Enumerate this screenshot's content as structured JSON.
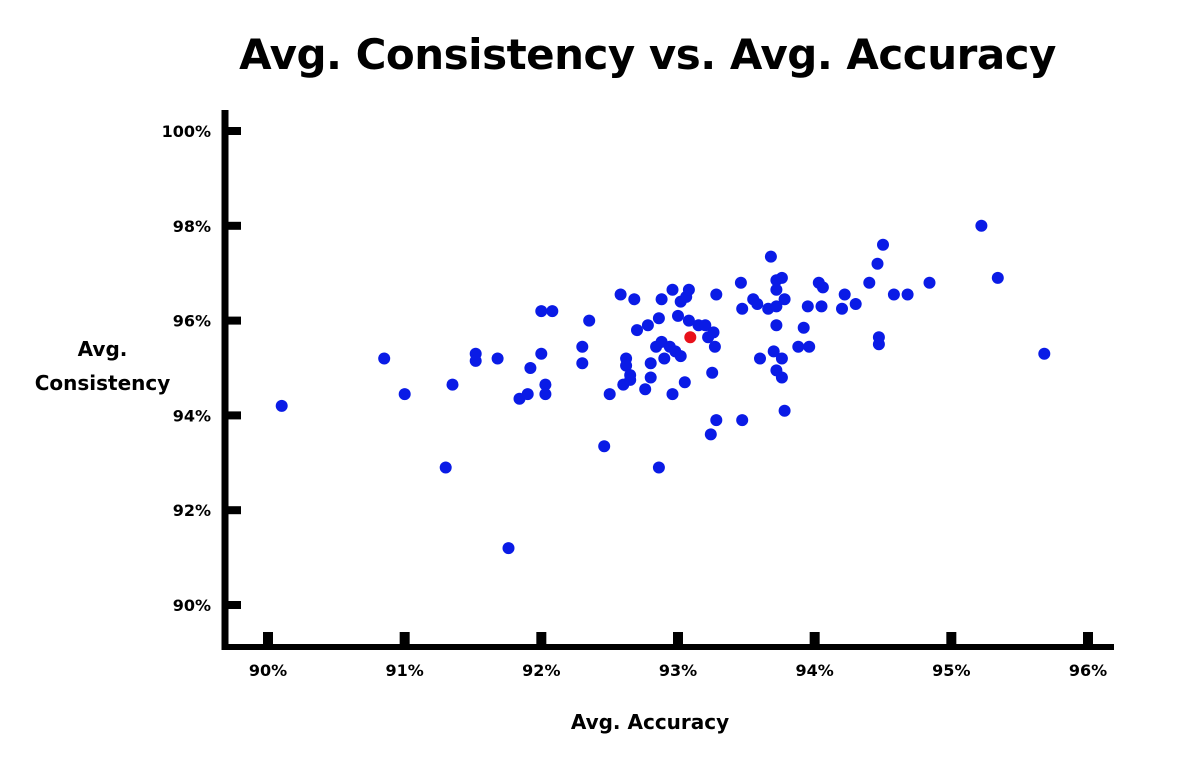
{
  "chart_data": {
    "type": "scatter",
    "title": "Avg. Consistency vs. Avg. Accuracy",
    "xlabel": "Avg. Accuracy",
    "ylabel_lines": [
      "Avg.",
      "Consistency"
    ],
    "xlim": [
      89.75,
      96.2
    ],
    "ylim": [
      89.6,
      100.2
    ],
    "x_ticks": [
      90,
      91,
      92,
      93,
      94,
      95,
      96
    ],
    "x_tick_labels": [
      "90%",
      "91%",
      "92%",
      "93%",
      "94%",
      "95%",
      "96%"
    ],
    "y_ticks": [
      90,
      92,
      94,
      96,
      98,
      100
    ],
    "y_tick_labels": [
      "90%",
      "92%",
      "94%",
      "96%",
      "98%",
      "100%"
    ],
    "grid": false,
    "colors": {
      "points": "#0a1be6",
      "highlight": "#e8111b",
      "axis": "#000000"
    },
    "series": [
      {
        "points": [
          [
            90.1,
            94.2
          ],
          [
            90.85,
            95.2
          ],
          [
            91.0,
            94.45
          ],
          [
            91.3,
            92.9
          ],
          [
            91.35,
            94.65
          ],
          [
            91.52,
            95.3
          ],
          [
            91.52,
            95.15
          ],
          [
            91.68,
            95.2
          ],
          [
            91.76,
            91.2
          ],
          [
            91.84,
            94.35
          ],
          [
            91.9,
            94.45
          ],
          [
            91.92,
            95.0
          ],
          [
            92.0,
            96.2
          ],
          [
            92.0,
            95.3
          ],
          [
            92.03,
            94.65
          ],
          [
            92.03,
            94.45
          ],
          [
            92.08,
            96.2
          ],
          [
            92.3,
            95.45
          ],
          [
            92.3,
            95.1
          ],
          [
            92.35,
            96.0
          ],
          [
            92.46,
            93.35
          ],
          [
            92.5,
            94.45
          ],
          [
            92.58,
            96.55
          ],
          [
            92.6,
            94.65
          ],
          [
            92.62,
            95.2
          ],
          [
            92.62,
            95.05
          ],
          [
            92.65,
            94.85
          ],
          [
            92.65,
            94.75
          ],
          [
            92.68,
            96.45
          ],
          [
            92.7,
            95.8
          ],
          [
            92.76,
            94.55
          ],
          [
            92.78,
            95.9
          ],
          [
            92.8,
            95.1
          ],
          [
            92.8,
            94.8
          ],
          [
            92.84,
            95.45
          ],
          [
            92.86,
            96.05
          ],
          [
            92.86,
            92.9
          ],
          [
            92.88,
            96.45
          ],
          [
            92.88,
            95.55
          ],
          [
            92.9,
            95.2
          ],
          [
            92.94,
            95.45
          ],
          [
            92.96,
            96.65
          ],
          [
            92.96,
            94.45
          ],
          [
            92.98,
            95.35
          ],
          [
            93.0,
            96.1
          ],
          [
            93.02,
            96.4
          ],
          [
            93.02,
            95.25
          ],
          [
            93.05,
            94.7
          ],
          [
            93.06,
            96.5
          ],
          [
            93.08,
            96.65
          ],
          [
            93.08,
            96.0
          ],
          [
            93.15,
            95.9
          ],
          [
            93.2,
            95.9
          ],
          [
            93.22,
            95.65
          ],
          [
            93.24,
            93.6
          ],
          [
            93.25,
            94.9
          ],
          [
            93.26,
            95.75
          ],
          [
            93.27,
            95.45
          ],
          [
            93.28,
            93.9
          ],
          [
            93.28,
            96.55
          ],
          [
            93.46,
            96.8
          ],
          [
            93.47,
            96.25
          ],
          [
            93.47,
            93.9
          ],
          [
            93.55,
            96.45
          ],
          [
            93.58,
            96.35
          ],
          [
            93.6,
            95.2
          ],
          [
            93.66,
            96.25
          ],
          [
            93.68,
            97.35
          ],
          [
            93.7,
            95.35
          ],
          [
            93.72,
            96.85
          ],
          [
            93.72,
            96.65
          ],
          [
            93.72,
            96.3
          ],
          [
            93.72,
            95.9
          ],
          [
            93.72,
            94.95
          ],
          [
            93.76,
            95.2
          ],
          [
            93.76,
            94.8
          ],
          [
            93.76,
            96.9
          ],
          [
            93.78,
            96.45
          ],
          [
            93.78,
            94.1
          ],
          [
            93.88,
            95.45
          ],
          [
            93.92,
            95.85
          ],
          [
            93.95,
            96.3
          ],
          [
            93.96,
            95.45
          ],
          [
            94.03,
            96.8
          ],
          [
            94.05,
            96.3
          ],
          [
            94.06,
            96.7
          ],
          [
            94.2,
            96.25
          ],
          [
            94.22,
            96.55
          ],
          [
            94.3,
            96.35
          ],
          [
            94.4,
            96.8
          ],
          [
            94.46,
            97.2
          ],
          [
            94.47,
            95.5
          ],
          [
            94.47,
            95.65
          ],
          [
            94.5,
            97.6
          ],
          [
            94.58,
            96.55
          ],
          [
            94.68,
            96.55
          ],
          [
            94.84,
            96.8
          ],
          [
            95.22,
            98.0
          ],
          [
            95.34,
            96.9
          ],
          [
            95.68,
            95.3
          ]
        ]
      },
      {
        "highlight": true,
        "points": [
          [
            93.09,
            95.65
          ]
        ]
      }
    ]
  }
}
